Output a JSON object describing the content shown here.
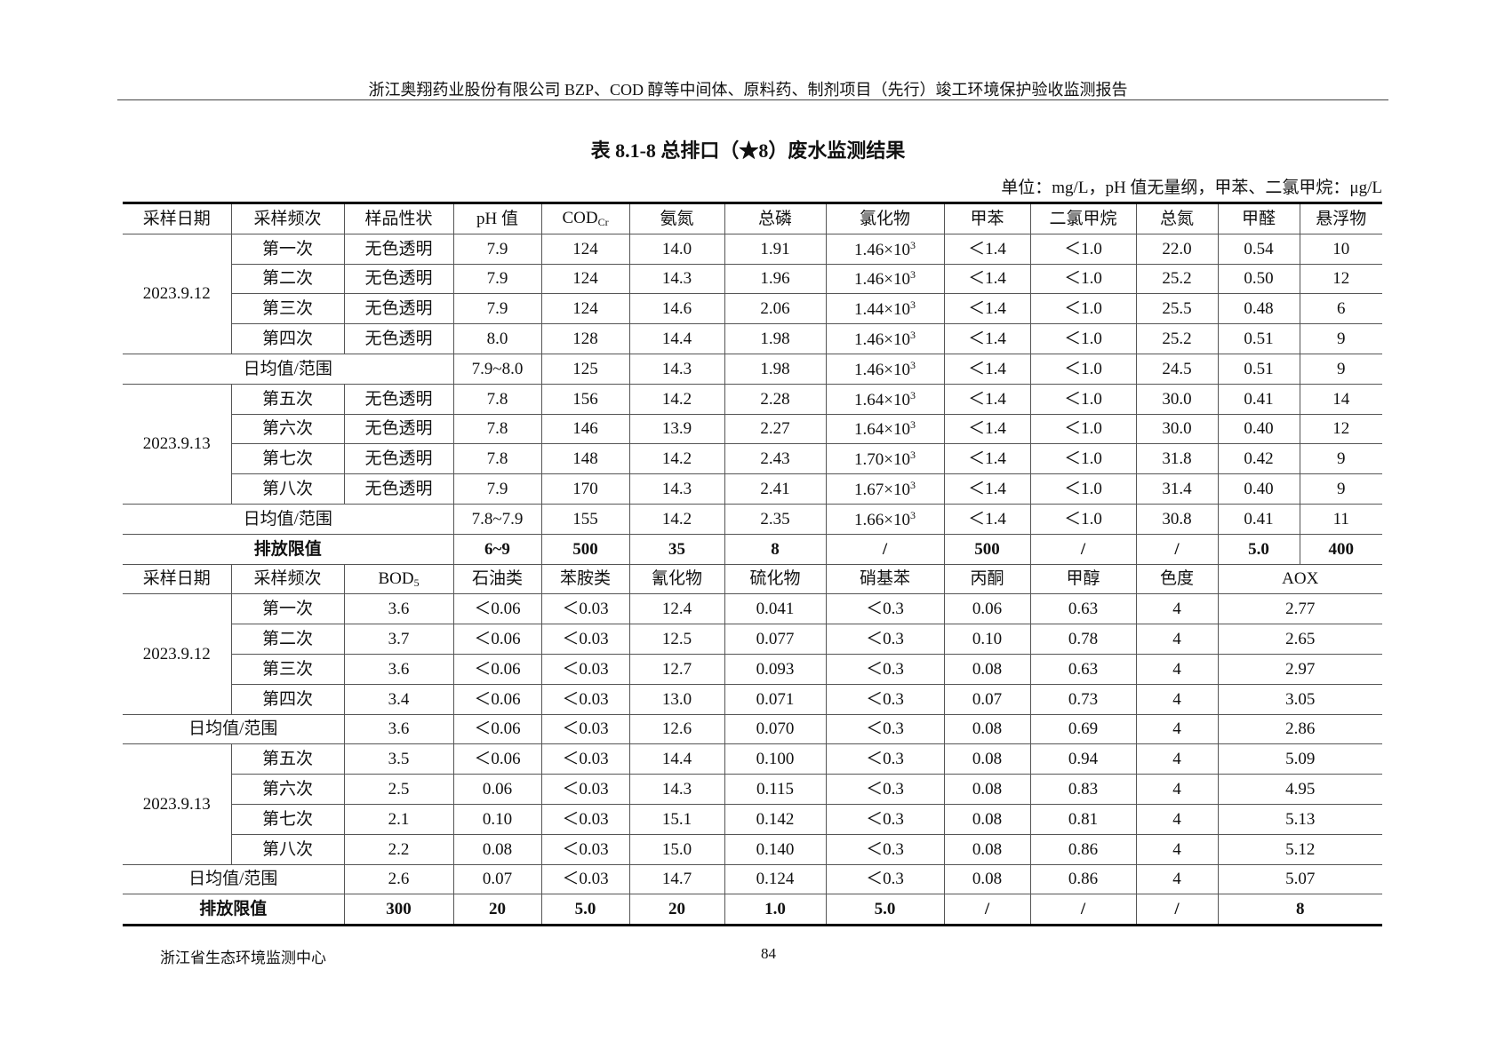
{
  "page_header": "浙江奥翔药业股份有限公司 BZP、COD 醇等中间体、原料药、制剂项目（先行）竣工环境保护验收监测报告",
  "table_title": "表 8.1-8  总排口（★8）废水监测结果",
  "unit_note": "单位：mg/L，pH 值无量纲，甲苯、二氯甲烷：μg/L",
  "part1": {
    "headers": [
      {
        "t": "采样日期"
      },
      {
        "t": "采样频次"
      },
      {
        "t": "样品性状"
      },
      {
        "t": "pH 值"
      },
      {
        "t": "COD",
        "sub": "Cr"
      },
      {
        "t": "氨氮"
      },
      {
        "t": "总磷"
      },
      {
        "t": "氯化物"
      },
      {
        "t": "甲苯"
      },
      {
        "t": "二氯甲烷"
      },
      {
        "t": "总氮"
      },
      {
        "t": "甲醛"
      },
      {
        "t": "悬浮物"
      }
    ],
    "groups": [
      {
        "date": "2023.9.12",
        "rows": [
          [
            "第一次",
            "无色透明",
            "7.9",
            "124",
            "14.0",
            "1.91",
            "1.46×10^3",
            "＜1.4",
            "＜1.0",
            "22.0",
            "0.54",
            "10"
          ],
          [
            "第二次",
            "无色透明",
            "7.9",
            "124",
            "14.3",
            "1.96",
            "1.46×10^3",
            "＜1.4",
            "＜1.0",
            "25.2",
            "0.50",
            "12"
          ],
          [
            "第三次",
            "无色透明",
            "7.9",
            "124",
            "14.6",
            "2.06",
            "1.44×10^3",
            "＜1.4",
            "＜1.0",
            "25.5",
            "0.48",
            "6"
          ],
          [
            "第四次",
            "无色透明",
            "8.0",
            "128",
            "14.4",
            "1.98",
            "1.46×10^3",
            "＜1.4",
            "＜1.0",
            "25.2",
            "0.51",
            "9"
          ]
        ],
        "avg": [
          "日均值/范围",
          "7.9~8.0",
          "125",
          "14.3",
          "1.98",
          "1.46×10^3",
          "＜1.4",
          "＜1.0",
          "24.5",
          "0.51",
          "9"
        ]
      },
      {
        "date": "2023.9.13",
        "rows": [
          [
            "第五次",
            "无色透明",
            "7.8",
            "156",
            "14.2",
            "2.28",
            "1.64×10^3",
            "＜1.4",
            "＜1.0",
            "30.0",
            "0.41",
            "14"
          ],
          [
            "第六次",
            "无色透明",
            "7.8",
            "146",
            "13.9",
            "2.27",
            "1.64×10^3",
            "＜1.4",
            "＜1.0",
            "30.0",
            "0.40",
            "12"
          ],
          [
            "第七次",
            "无色透明",
            "7.8",
            "148",
            "14.2",
            "2.43",
            "1.70×10^3",
            "＜1.4",
            "＜1.0",
            "31.8",
            "0.42",
            "9"
          ],
          [
            "第八次",
            "无色透明",
            "7.9",
            "170",
            "14.3",
            "2.41",
            "1.67×10^3",
            "＜1.4",
            "＜1.0",
            "31.4",
            "0.40",
            "9"
          ]
        ],
        "avg": [
          "日均值/范围",
          "7.8~7.9",
          "155",
          "14.2",
          "2.35",
          "1.66×10^3",
          "＜1.4",
          "＜1.0",
          "30.8",
          "0.41",
          "11"
        ]
      }
    ],
    "limit": [
      "排放限值",
      "6~9",
      "500",
      "35",
      "8",
      "/",
      "500",
      "/",
      "/",
      "5.0",
      "400"
    ]
  },
  "part2": {
    "headers": [
      {
        "t": "采样日期"
      },
      {
        "t": "采样频次"
      },
      {
        "t": "BOD",
        "sub": "5"
      },
      {
        "t": "石油类"
      },
      {
        "t": "苯胺类"
      },
      {
        "t": "氰化物"
      },
      {
        "t": "硫化物"
      },
      {
        "t": "硝基苯"
      },
      {
        "t": "丙酮"
      },
      {
        "t": "甲醇"
      },
      {
        "t": "色度"
      },
      {
        "t": "AOX"
      }
    ],
    "groups": [
      {
        "date": "2023.9.12",
        "rows": [
          [
            "第一次",
            "3.6",
            "＜0.06",
            "＜0.03",
            "12.4",
            "0.041",
            "＜0.3",
            "0.06",
            "0.63",
            "4",
            "2.77"
          ],
          [
            "第二次",
            "3.7",
            "＜0.06",
            "＜0.03",
            "12.5",
            "0.077",
            "＜0.3",
            "0.10",
            "0.78",
            "4",
            "2.65"
          ],
          [
            "第三次",
            "3.6",
            "＜0.06",
            "＜0.03",
            "12.7",
            "0.093",
            "＜0.3",
            "0.08",
            "0.63",
            "4",
            "2.97"
          ],
          [
            "第四次",
            "3.4",
            "＜0.06",
            "＜0.03",
            "13.0",
            "0.071",
            "＜0.3",
            "0.07",
            "0.73",
            "4",
            "3.05"
          ]
        ],
        "avg": [
          "日均值/范围",
          "3.6",
          "＜0.06",
          "＜0.03",
          "12.6",
          "0.070",
          "＜0.3",
          "0.08",
          "0.69",
          "4",
          "2.86"
        ]
      },
      {
        "date": "2023.9.13",
        "rows": [
          [
            "第五次",
            "3.5",
            "＜0.06",
            "＜0.03",
            "14.4",
            "0.100",
            "＜0.3",
            "0.08",
            "0.94",
            "4",
            "5.09"
          ],
          [
            "第六次",
            "2.5",
            "0.06",
            "＜0.03",
            "14.3",
            "0.115",
            "＜0.3",
            "0.08",
            "0.83",
            "4",
            "4.95"
          ],
          [
            "第七次",
            "2.1",
            "0.10",
            "＜0.03",
            "15.1",
            "0.142",
            "＜0.3",
            "0.08",
            "0.81",
            "4",
            "5.13"
          ],
          [
            "第八次",
            "2.2",
            "0.08",
            "＜0.03",
            "15.0",
            "0.140",
            "＜0.3",
            "0.08",
            "0.86",
            "4",
            "5.12"
          ]
        ],
        "avg": [
          "日均值/范围",
          "2.6",
          "0.07",
          "＜0.03",
          "14.7",
          "0.124",
          "＜0.3",
          "0.08",
          "0.86",
          "4",
          "5.07"
        ]
      }
    ],
    "limit": [
      "排放限值",
      "300",
      "20",
      "5.0",
      "20",
      "1.0",
      "5.0",
      "/",
      "/",
      "/",
      "8"
    ]
  },
  "footer": {
    "org": "浙江省生态环境监测中心",
    "page": "84"
  }
}
